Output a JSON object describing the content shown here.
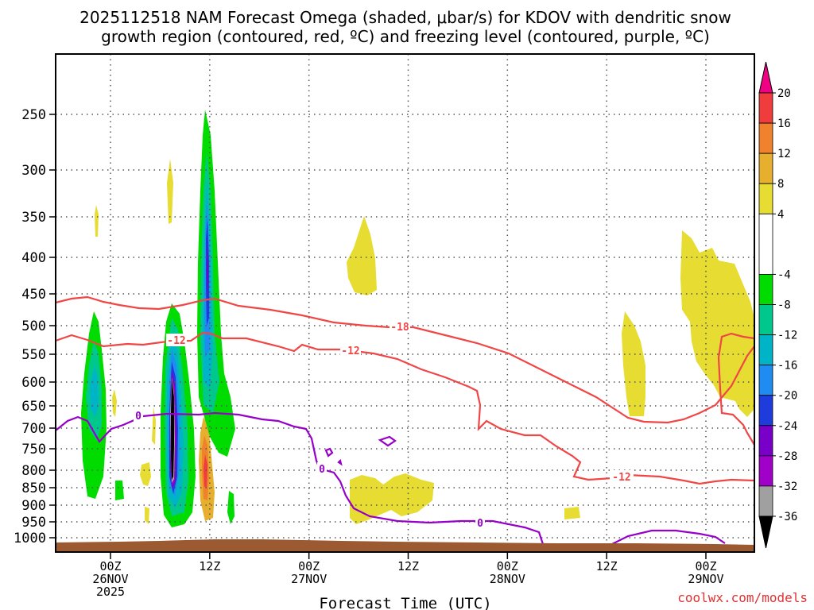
{
  "chart_data": {
    "type": "heatmap",
    "title_line1": "2025112518 NAM Forecast Omega (shaded, μbar/s) for KDOV with dendritic snow",
    "title_line2": "growth region (contoured, red, ºC) and freezing level (contoured, purple, ºC)",
    "xlabel": "Forecast Time (UTC)",
    "credit": "coolwx.com/models",
    "y_ticks": [
      "250",
      "300",
      "350",
      "400",
      "450",
      "500",
      "550",
      "600",
      "650",
      "700",
      "750",
      "800",
      "850",
      "900",
      "950",
      "1000"
    ],
    "y_values": [
      250,
      300,
      350,
      400,
      450,
      500,
      550,
      600,
      650,
      700,
      750,
      800,
      850,
      900,
      950,
      1000
    ],
    "ylim": [
      1000,
      200
    ],
    "x_ticks": [
      {
        "hour": 6,
        "lines": [
          "00Z",
          "26NOV",
          "2025"
        ]
      },
      {
        "hour": 18,
        "lines": [
          "12Z"
        ]
      },
      {
        "hour": 30,
        "lines": [
          "00Z",
          "27NOV"
        ]
      },
      {
        "hour": 42,
        "lines": [
          "12Z"
        ]
      },
      {
        "hour": 54,
        "lines": [
          "00Z",
          "28NOV"
        ]
      },
      {
        "hour": 66,
        "lines": [
          "12Z"
        ]
      },
      {
        "hour": 78,
        "lines": [
          "00Z",
          "29NOV"
        ]
      }
    ],
    "xlim": [
      0,
      84
    ],
    "colorbar": {
      "labels": [
        "20",
        "16",
        "12",
        "8",
        "4",
        "-4",
        "-8",
        "-12",
        "-16",
        "-20",
        "-24",
        "-28",
        "-32",
        "-36"
      ],
      "segments": [
        {
          "from": 16,
          "to": 20,
          "color": "#f03c3c"
        },
        {
          "from": 12,
          "to": 16,
          "color": "#f0822d"
        },
        {
          "from": 8,
          "to": 12,
          "color": "#e6af2d"
        },
        {
          "from": 4,
          "to": 8,
          "color": "#e6dc32"
        },
        {
          "from": -4,
          "to": 4,
          "color": "#ffffff"
        },
        {
          "from": -8,
          "to": -4,
          "color": "#00dc00"
        },
        {
          "from": -12,
          "to": -8,
          "color": "#00c88c"
        },
        {
          "from": -16,
          "to": -12,
          "color": "#00b4c8"
        },
        {
          "from": -20,
          "to": -16,
          "color": "#1e8cf0"
        },
        {
          "from": -24,
          "to": -20,
          "color": "#1e3cdc"
        },
        {
          "from": -28,
          "to": -24,
          "color": "#7800c8"
        },
        {
          "from": -32,
          "to": -28,
          "color": "#a000c8"
        },
        {
          "from": -36,
          "to": -32,
          "color": "#a0a0a0"
        }
      ],
      "top_arrow_color": "#f00082",
      "bottom_arrow_color": "#000000"
    },
    "contour_labels": [
      "-18",
      "-12",
      "-12",
      "0",
      "0",
      "0"
    ],
    "colors": {
      "dgz": "#f04646",
      "freezing": "#9600c8",
      "ground": "#9c5a32",
      "grid": "#555555"
    }
  }
}
